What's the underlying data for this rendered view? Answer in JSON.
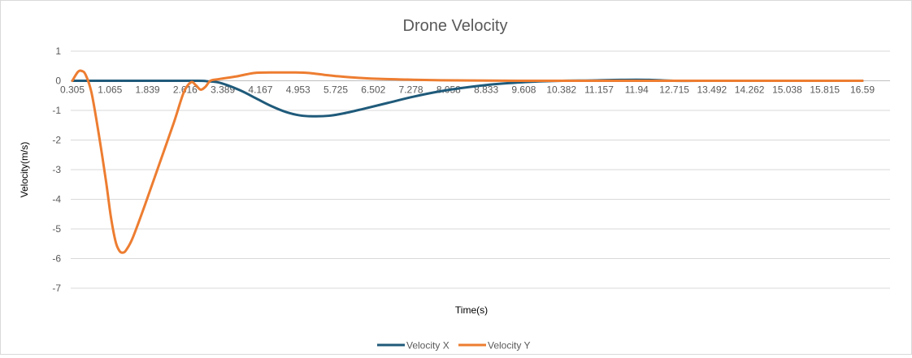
{
  "chart_data": {
    "type": "line",
    "title": "Drone Velocity",
    "xlabel": "Time(s)",
    "ylabel": "Velocity(m/s)",
    "ylim": [
      -7,
      1
    ],
    "y_ticks": [
      "1",
      "0",
      "-1",
      "-2",
      "-3",
      "-4",
      "-5",
      "-6",
      "-7"
    ],
    "x_tick_labels": [
      "0.305",
      "1.065",
      "1.839",
      "2.616",
      "3.389",
      "4.167",
      "4.953",
      "5.725",
      "6.502",
      "7.278",
      "8.058",
      "8.833",
      "9.608",
      "10.382",
      "11.157",
      "11.94",
      "12.715",
      "13.492",
      "14.262",
      "15.038",
      "15.815",
      "16.59"
    ],
    "xlim": [
      0.305,
      16.59
    ],
    "grid": true,
    "legend_position": "bottom",
    "series": [
      {
        "name": "Velocity X",
        "color": "#1f5a7a",
        "x": [
          0.305,
          1.0,
          2.0,
          2.9,
          3.1,
          3.3,
          3.5,
          3.8,
          4.1,
          4.4,
          4.7,
          5.0,
          5.3,
          5.6,
          5.9,
          6.3,
          6.8,
          7.3,
          7.8,
          8.3,
          8.8,
          9.3,
          9.8,
          10.4,
          11.0,
          11.6,
          12.2,
          12.7,
          13.5,
          14.5,
          15.5,
          16.59
        ],
        "y": [
          0,
          0,
          0,
          0,
          -0.02,
          -0.05,
          -0.15,
          -0.35,
          -0.6,
          -0.85,
          -1.05,
          -1.17,
          -1.2,
          -1.18,
          -1.1,
          -0.95,
          -0.75,
          -0.55,
          -0.38,
          -0.25,
          -0.15,
          -0.08,
          -0.03,
          0,
          0.01,
          0.03,
          0.03,
          0,
          0,
          0,
          0,
          0
        ]
      },
      {
        "name": "Velocity Y",
        "color": "#ed7d31",
        "x": [
          0.305,
          0.42,
          0.5,
          0.58,
          0.7,
          0.85,
          1.0,
          1.1,
          1.2,
          1.28,
          1.35,
          1.42,
          1.55,
          1.8,
          2.1,
          2.4,
          2.6,
          2.75,
          2.85,
          2.95,
          3.05,
          3.15,
          3.3,
          3.5,
          3.7,
          3.9,
          4.1,
          4.5,
          4.9,
          5.2,
          5.5,
          5.8,
          6.2,
          6.7,
          7.2,
          7.8,
          8.5,
          9.5,
          10.5,
          12.0,
          14.0,
          16.59
        ],
        "y": [
          0,
          0.3,
          0.33,
          0.2,
          -0.4,
          -1.8,
          -3.4,
          -4.6,
          -5.45,
          -5.75,
          -5.8,
          -5.7,
          -5.3,
          -4.2,
          -2.8,
          -1.4,
          -0.4,
          -0.05,
          -0.15,
          -0.3,
          -0.2,
          0,
          0.05,
          0.1,
          0.15,
          0.22,
          0.27,
          0.28,
          0.28,
          0.26,
          0.2,
          0.15,
          0.1,
          0.06,
          0.04,
          0.02,
          0.01,
          0,
          0,
          0,
          0,
          0
        ]
      }
    ]
  }
}
